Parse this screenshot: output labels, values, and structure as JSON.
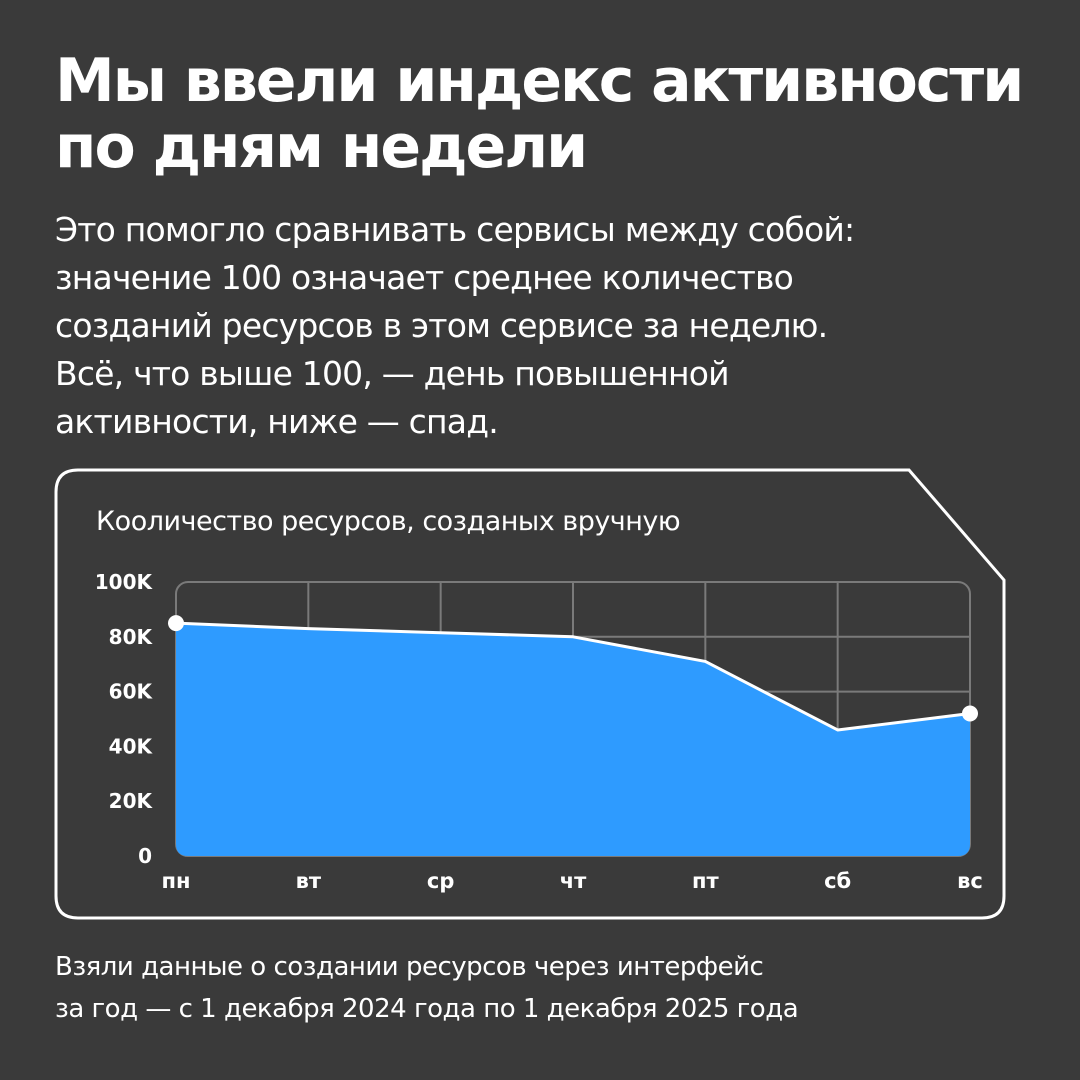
{
  "headline": {
    "line1": "Мы ввели индекс активности",
    "line2": "по дням недели"
  },
  "lead": {
    "line1": "Это помогло сравнивать сервисы между собой:",
    "line2": "значение 100 означает среднее количество",
    "line3": "созданий ресурсов в этом сервисе за неделю.",
    "line4": "Всё, что выше 100, — день повышенной",
    "line5": "активности, ниже — спад."
  },
  "footnote": {
    "line1": "Взяли данные о создании ресурсов через интерфейс",
    "line2": "за год  — с 1 декабря 2024 года по 1 декабря 2025 года"
  },
  "colors": {
    "background": "#3a3a3a",
    "fill": "#2e9bff",
    "line": "#ffffff",
    "grid": "#7a7a7a"
  },
  "chart_data": {
    "type": "area",
    "title": "Кооличество ресурсов, созданых вручную",
    "categories": [
      "пн",
      "вт",
      "ср",
      "чт",
      "пт",
      "сб",
      "вс"
    ],
    "values": [
      85000,
      83000,
      81500,
      80000,
      71000,
      46000,
      52000
    ],
    "marked_points": [
      "пн",
      "вс"
    ],
    "ylim": [
      0,
      100000
    ],
    "yticks": [
      0,
      20000,
      40000,
      60000,
      80000,
      100000
    ],
    "ytick_labels": [
      "0",
      "20K",
      "40K",
      "60K",
      "80K",
      "100K"
    ],
    "xlabel": "",
    "ylabel": "",
    "grid": true
  }
}
